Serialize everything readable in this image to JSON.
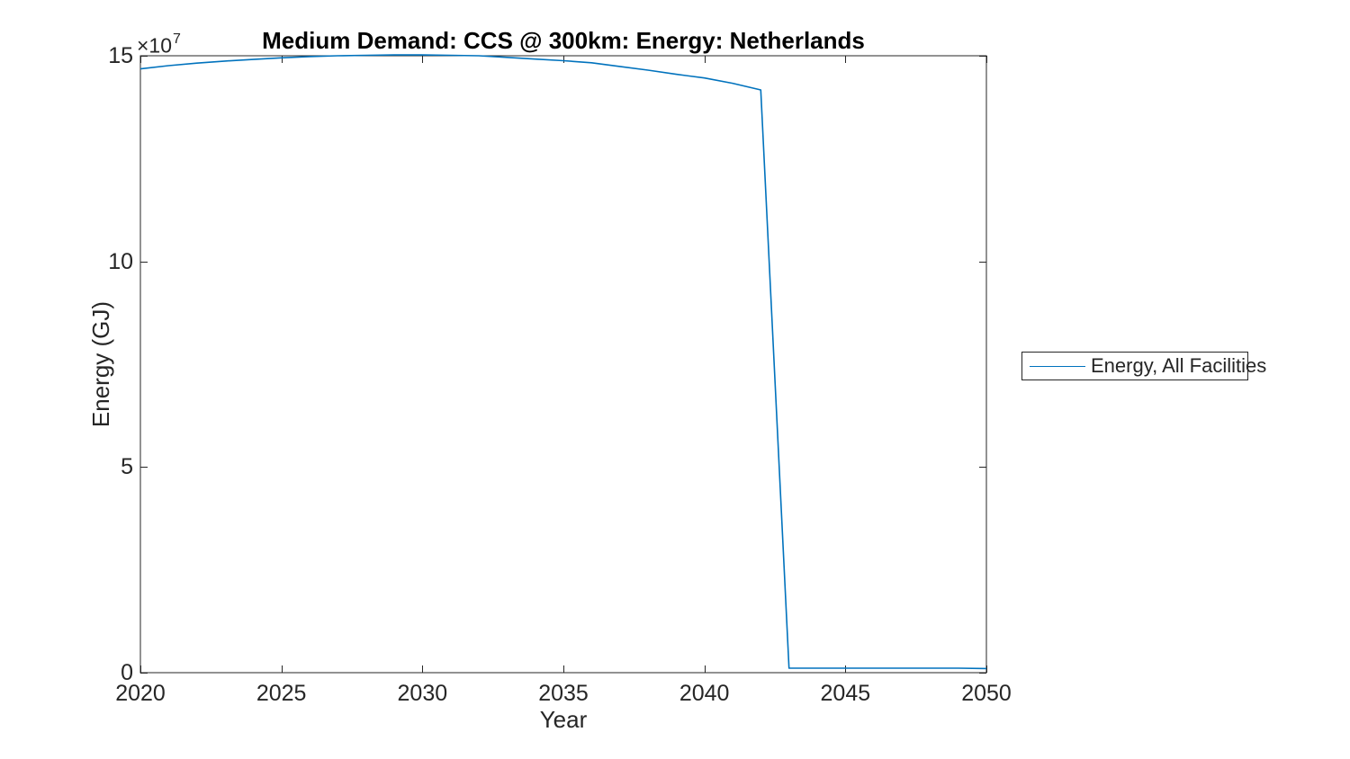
{
  "figure": {
    "background": "#ffffff"
  },
  "colors": {
    "axis": "#262626",
    "line": "#0072BD",
    "background": "#ffffff",
    "legend_border": "#262626",
    "title_text": "#000000",
    "tick_text": "#262626"
  },
  "chart_data": {
    "type": "line",
    "title": "Medium Demand: CCS @ 300km: Energy: Netherlands",
    "xlabel": "Year",
    "ylabel": "Energy (GJ)",
    "y_exponent_base": "×10",
    "y_exponent": "7",
    "xlim": [
      2020,
      2050
    ],
    "ylim": [
      0,
      150000000
    ],
    "xticks": [
      2020,
      2025,
      2030,
      2035,
      2040,
      2045,
      2050
    ],
    "xtick_labels": [
      "2020",
      "2025",
      "2030",
      "2035",
      "2040",
      "2045",
      "2050"
    ],
    "yticks": [
      0,
      50000000,
      100000000,
      150000000
    ],
    "ytick_labels": [
      "0",
      "5",
      "10",
      "15"
    ],
    "grid": false,
    "legend": {
      "position": "right-outside",
      "entries": [
        {
          "label": "Energy, All Facilities",
          "color": "#0072BD"
        }
      ]
    },
    "x": [
      2020,
      2021,
      2022,
      2023,
      2024,
      2025,
      2026,
      2027,
      2028,
      2029,
      2030,
      2031,
      2032,
      2033,
      2034,
      2035,
      2036,
      2037,
      2038,
      2039,
      2040,
      2041,
      2042,
      2043,
      2044,
      2045,
      2046,
      2047,
      2048,
      2049,
      2050
    ],
    "series": [
      {
        "name": "Energy, All Facilities",
        "color": "#0072BD",
        "values": [
          146800000,
          147600000,
          148200000,
          148700000,
          149100000,
          149500000,
          149800000,
          150000000,
          150100000,
          150200000,
          150200000,
          150100000,
          150000000,
          149600000,
          149200000,
          148800000,
          148300000,
          147400000,
          146500000,
          145500000,
          144600000,
          143300000,
          141700000,
          1100000,
          1100000,
          1100000,
          1100000,
          1100000,
          1100000,
          1100000,
          1000000
        ]
      }
    ]
  }
}
